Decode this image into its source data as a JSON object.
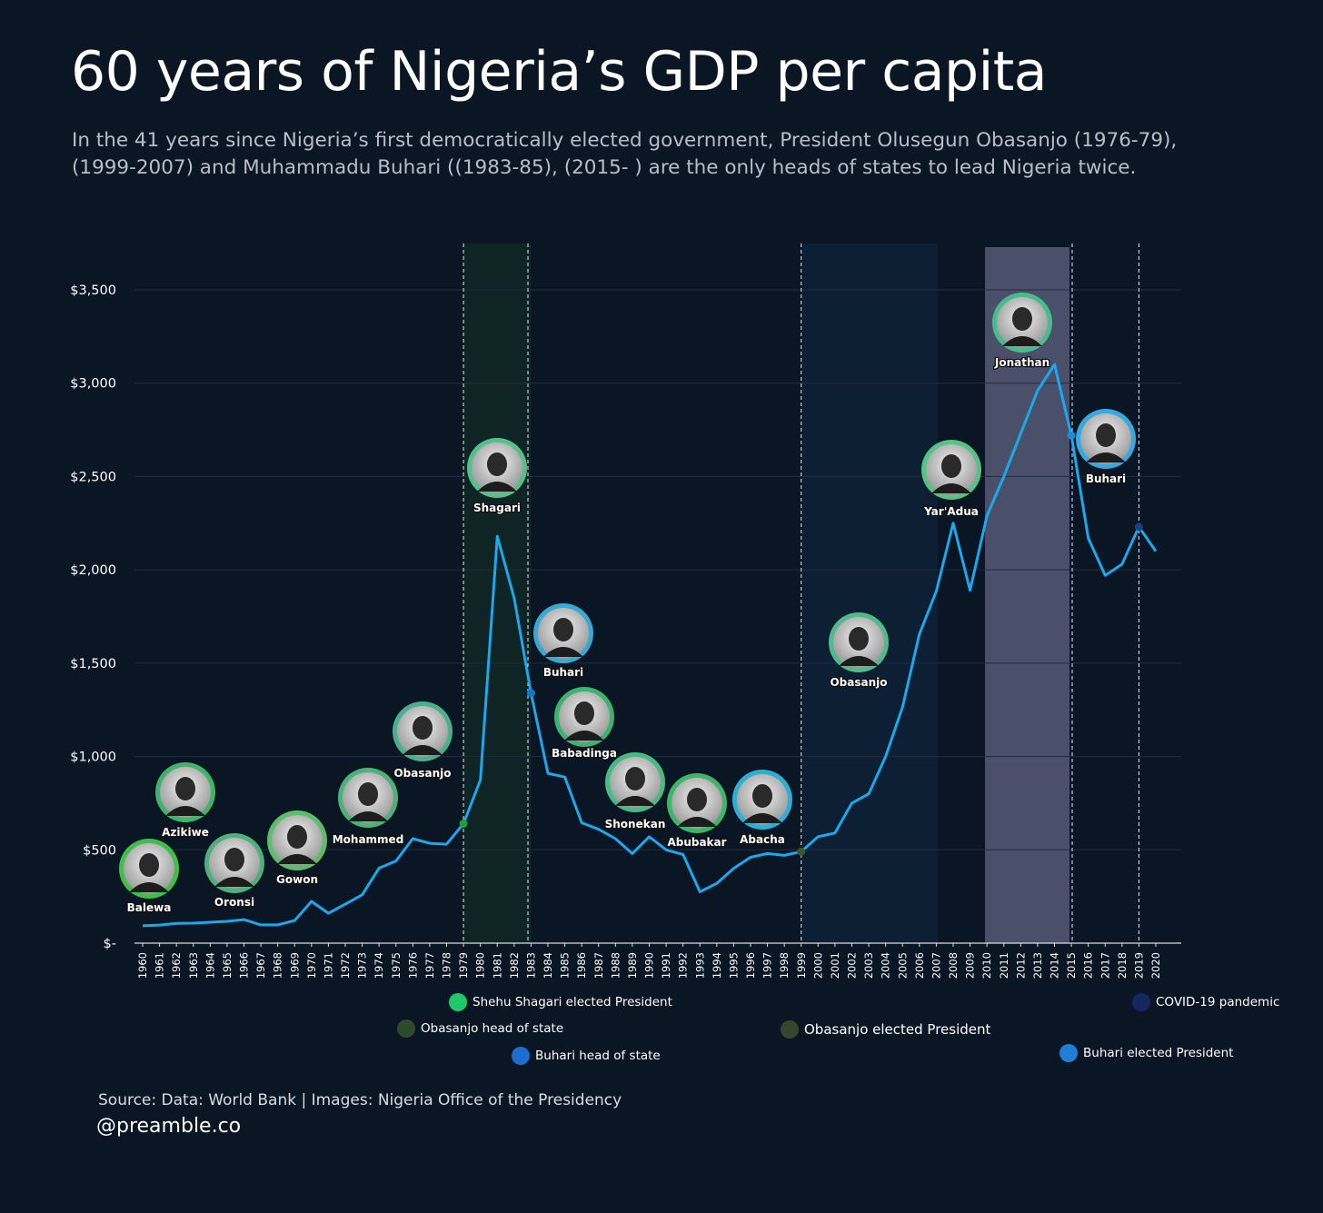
{
  "title": "60 years of Nigeria’s GDP per capita",
  "subtitle": "In the 41 years since Nigeria’s first democratically elected government, President Olusegun Obasanjo (1976-79), (1999-2007) and Muhammadu Buhari ((1983-85), (2015- ) are the only heads of states to lead Nigeria twice.",
  "source": "Source: Data: World Bank | Images: Nigeria Office of the Presidency",
  "handle": "@preamble.co",
  "colors": {
    "background": "#0b1625",
    "line": "#1ba8ec",
    "grid": "#1e2d3f",
    "shade_shagari": "#0f2425",
    "shade_obasanjo": "#0d1f32",
    "shade_jonathan": "#4a4f6a"
  },
  "chart_data": {
    "type": "line",
    "x": [
      1960,
      1961,
      1962,
      1963,
      1964,
      1965,
      1966,
      1967,
      1968,
      1969,
      1970,
      1971,
      1972,
      1973,
      1974,
      1975,
      1976,
      1977,
      1978,
      1979,
      1980,
      1981,
      1982,
      1983,
      1984,
      1985,
      1986,
      1987,
      1988,
      1989,
      1990,
      1991,
      1992,
      1993,
      1994,
      1995,
      1996,
      1997,
      1998,
      1999,
      2000,
      2001,
      2002,
      2003,
      2004,
      2005,
      2006,
      2007,
      2008,
      2009,
      2010,
      2011,
      2012,
      2013,
      2014,
      2015,
      2016,
      2017,
      2018,
      2019,
      2020
    ],
    "y": [
      93,
      97,
      106,
      107,
      112,
      117,
      126,
      98,
      98,
      121,
      224,
      160,
      209,
      259,
      402,
      440,
      560,
      535,
      530,
      640,
      874,
      2180,
      1850,
      1340,
      910,
      890,
      645,
      610,
      560,
      480,
      570,
      500,
      475,
      275,
      320,
      400,
      460,
      480,
      470,
      490,
      570,
      590,
      750,
      800,
      1000,
      1265,
      1655,
      1885,
      2250,
      1890,
      2290,
      2500,
      2730,
      2960,
      3100,
      2720,
      2170,
      1970,
      2030,
      2230,
      2100
    ],
    "ylim": [
      0,
      3700
    ],
    "y_ticks": [
      0,
      500,
      1000,
      1500,
      2000,
      2500,
      3000,
      3500
    ],
    "y_tick_labels": [
      "$-",
      "$500",
      "$1,000",
      "$1,500",
      "$2,000",
      "$2,500",
      "$3,000",
      "$3,500"
    ],
    "grid": "horizontal",
    "shaded_periods": [
      {
        "from": 1979,
        "to": 1983,
        "color": "shade_shagari"
      },
      {
        "from": 1999,
        "to": 2007,
        "color": "shade_obasanjo"
      },
      {
        "from": 2010,
        "to": 2015,
        "color": "shade_jonathan"
      }
    ],
    "event_lines": [
      1979,
      1983,
      1999,
      2015,
      2019
    ],
    "event_markers": [
      {
        "x": 1979,
        "y": 640,
        "color": "#1f9e3a"
      },
      {
        "x": 1983,
        "y": 1340,
        "color": "#1777c9"
      },
      {
        "x": 1999,
        "y": 490,
        "color": "#3a5a24"
      },
      {
        "x": 2015,
        "y": 2720,
        "color": "#1a8fd6"
      },
      {
        "x": 2019,
        "y": 2230,
        "color": "#1c3e86"
      }
    ],
    "leaders": [
      {
        "name": "Balewa",
        "color": "#3fbf4a"
      },
      {
        "name": "Azikiwe",
        "color": "#3fb46a"
      },
      {
        "name": "Oronsi",
        "color": "#4fb07c"
      },
      {
        "name": "Gowon",
        "color": "#5bbf6a"
      },
      {
        "name": "Mohammed",
        "color": "#4cb377"
      },
      {
        "name": "Obasanjo",
        "color": "#48b08a"
      },
      {
        "name": "Shagari",
        "color": "#56c08a"
      },
      {
        "name": "Buhari",
        "color": "#3aa8d4"
      },
      {
        "name": "Babadinga",
        "color": "#3ab46e"
      },
      {
        "name": "Shonekan",
        "color": "#48bb82"
      },
      {
        "name": "Abubakar",
        "color": "#3fb567"
      },
      {
        "name": "Abacha",
        "color": "#2eaed0"
      },
      {
        "name": "Obasanjo",
        "color": "#52b98a"
      },
      {
        "name": "Yar'Adua",
        "color": "#57c283"
      },
      {
        "name": "Jonathan",
        "color": "#48bd8c"
      },
      {
        "name": "Buhari",
        "color": "#36aadf"
      }
    ],
    "legend": [
      {
        "label": "Shehu Shagari elected President",
        "color": "#1fc96b"
      },
      {
        "label": "Obasanjo head of state",
        "color": "#2e4a2c"
      },
      {
        "label": "Buhari head of state",
        "color": "#1a6fd0"
      },
      {
        "label": "Obasanjo elected President",
        "color": "#34472a"
      },
      {
        "label": "COVID-19 pandemic",
        "color": "#14285f"
      },
      {
        "label": "Buhari elected President",
        "color": "#1f7fd8"
      }
    ]
  }
}
